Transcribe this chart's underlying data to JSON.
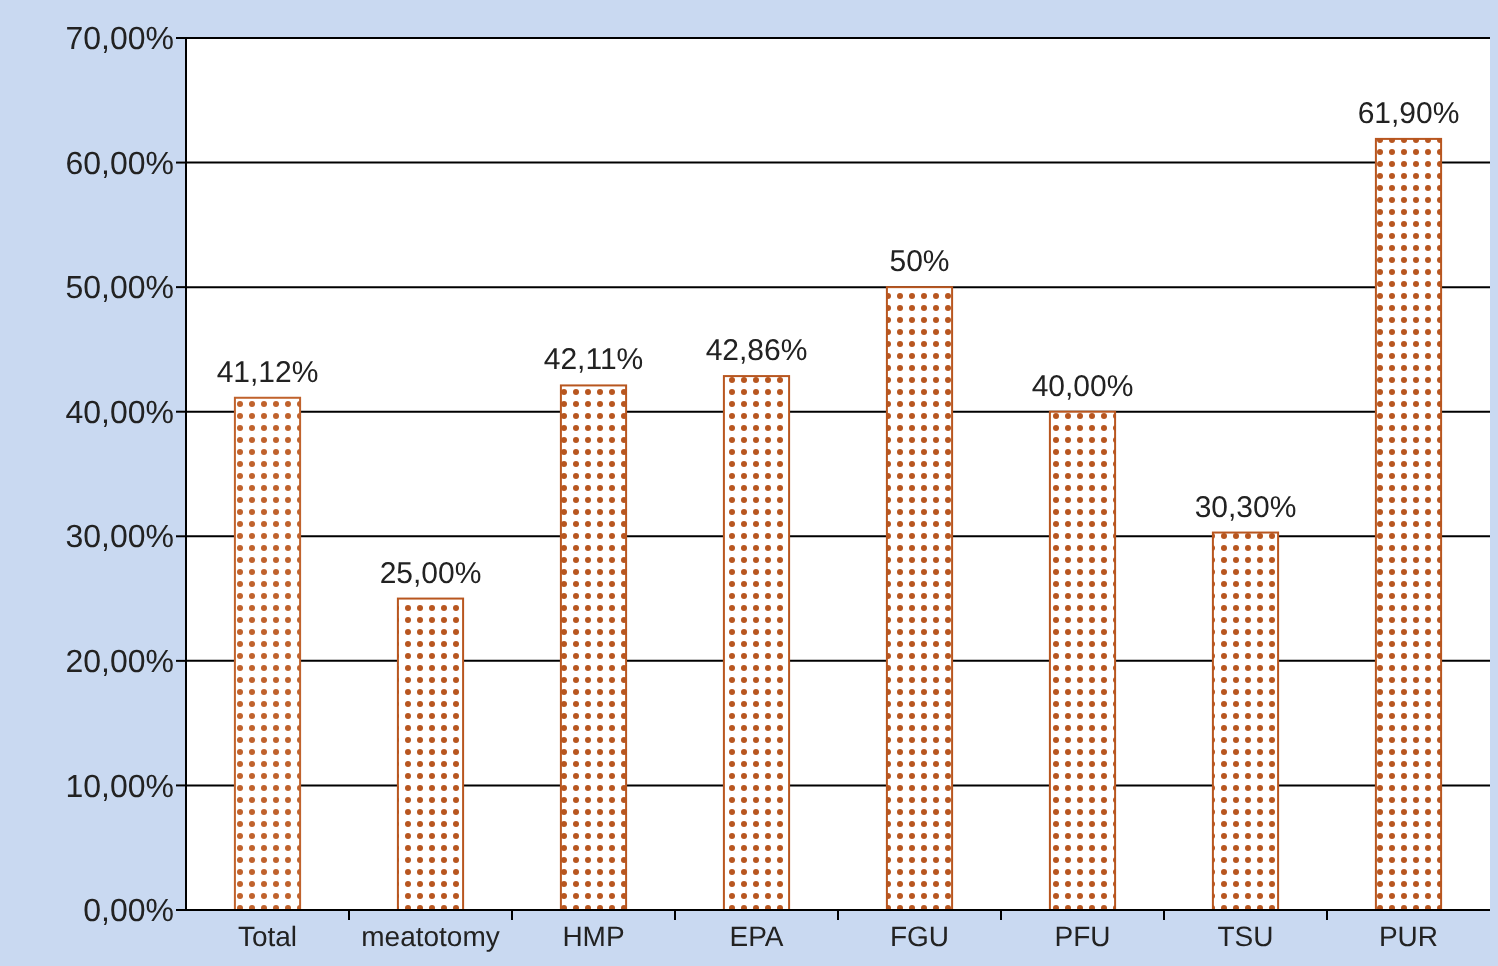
{
  "chart_data": {
    "type": "bar",
    "categories": [
      "Total",
      "meatotomy",
      "HMP",
      "EPA",
      "FGU",
      "PFU",
      "TSU",
      "PUR"
    ],
    "values": [
      41.12,
      25,
      42.11,
      42.86,
      50,
      40,
      30.3,
      61.9
    ],
    "value_labels": [
      "41,12%",
      "25,00%",
      "42,11%",
      "42,86%",
      "50%",
      "40,00%",
      "30,30%",
      "61,90%"
    ],
    "colors": [
      "#c0622c",
      "#b8561f",
      "#b8561f",
      "#b8561f",
      "#b8561f",
      "#b8561f",
      "#b8561f",
      "#b8561f"
    ],
    "ylim": [
      0,
      70
    ],
    "yticks": [
      {
        "value": 0,
        "label": "0,00%"
      },
      {
        "value": 10,
        "label": "10,00%"
      },
      {
        "value": 20,
        "label": "20,00%"
      },
      {
        "value": 30,
        "label": "30,00%"
      },
      {
        "value": 40,
        "label": "40,00%"
      },
      {
        "value": 50,
        "label": "50,00%"
      },
      {
        "value": 60,
        "label": "60,00%"
      },
      {
        "value": 70,
        "label": "70,00%"
      }
    ],
    "grid": "y"
  }
}
